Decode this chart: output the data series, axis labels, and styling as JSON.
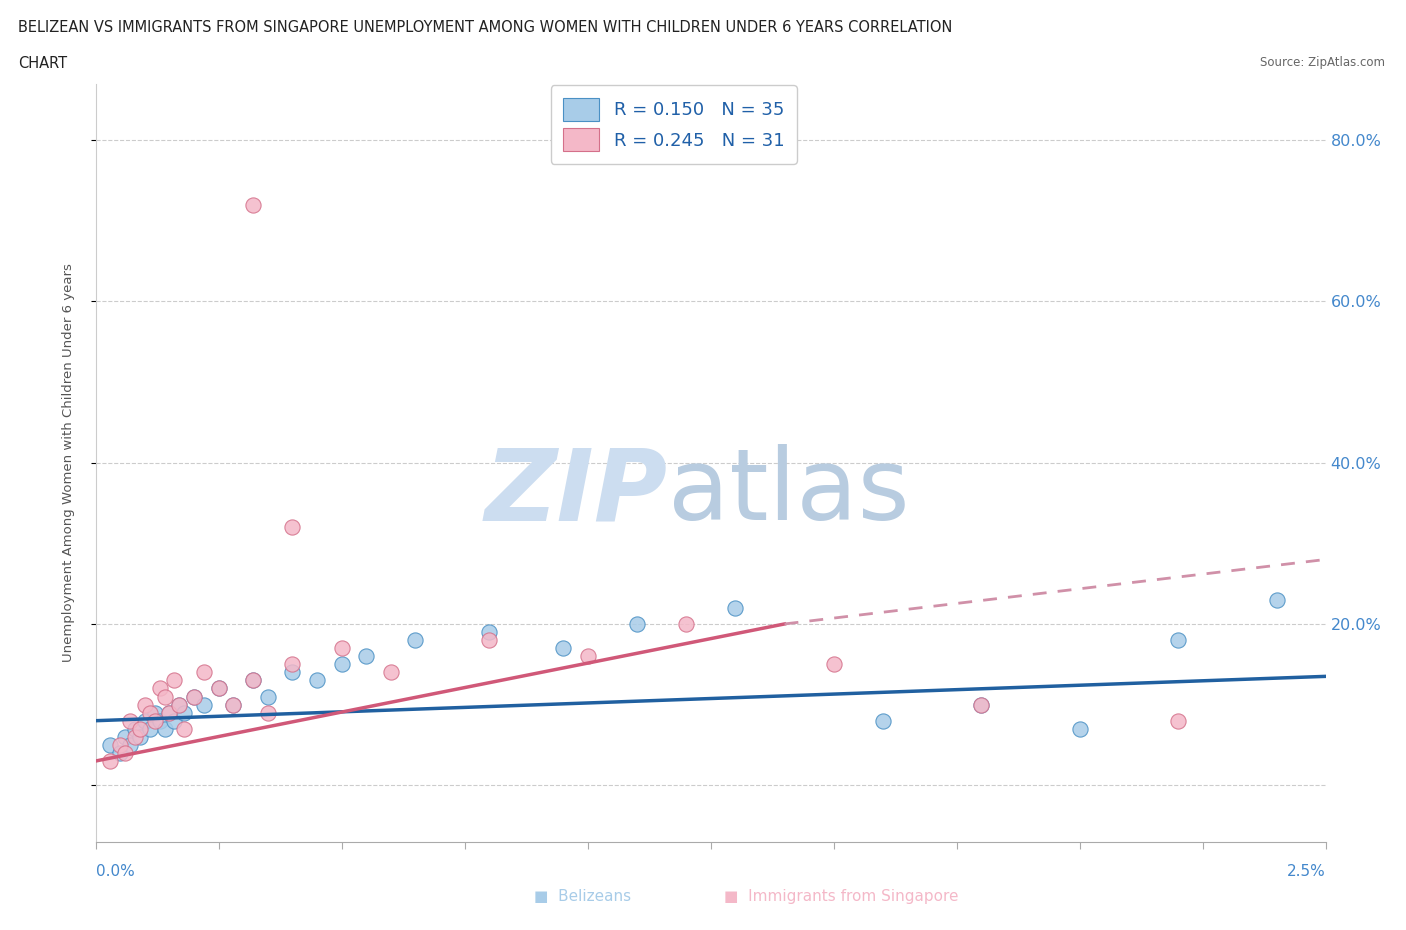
{
  "title_line1": "BELIZEAN VS IMMIGRANTS FROM SINGAPORE UNEMPLOYMENT AMONG WOMEN WITH CHILDREN UNDER 6 YEARS CORRELATION",
  "title_line2": "CHART",
  "source": "Source: ZipAtlas.com",
  "ylabel": "Unemployment Among Women with Children Under 6 years",
  "xlim": [
    0.0,
    2.5
  ],
  "ylim": [
    -7.0,
    87.0
  ],
  "yticks": [
    0,
    20,
    40,
    60,
    80
  ],
  "blue_color": "#a8cce8",
  "blue_edge": "#4a90c4",
  "pink_color": "#f4b8c8",
  "pink_edge": "#d4708a",
  "blue_trend_color": "#2060a0",
  "pink_solid_color": "#d05878",
  "pink_dash_color": "#d090a8",
  "blue_R": "0.150",
  "blue_N": "35",
  "pink_R": "0.245",
  "pink_N": "31",
  "legend_label1": "Belizeans",
  "legend_label2": "Immigrants from Singapore",
  "blue_x": [
    0.03,
    0.05,
    0.06,
    0.07,
    0.08,
    0.09,
    0.1,
    0.11,
    0.12,
    0.13,
    0.14,
    0.15,
    0.16,
    0.17,
    0.18,
    0.2,
    0.22,
    0.25,
    0.28,
    0.32,
    0.35,
    0.4,
    0.45,
    0.5,
    0.55,
    0.65,
    0.8,
    0.95,
    1.1,
    1.3,
    1.6,
    1.8,
    2.0,
    2.2,
    2.4
  ],
  "blue_y": [
    5,
    4,
    6,
    5,
    7,
    6,
    8,
    7,
    9,
    8,
    7,
    9,
    8,
    10,
    9,
    11,
    10,
    12,
    10,
    13,
    11,
    14,
    13,
    15,
    16,
    18,
    19,
    17,
    20,
    22,
    8,
    10,
    7,
    18,
    23
  ],
  "pink_x": [
    0.03,
    0.05,
    0.06,
    0.07,
    0.08,
    0.09,
    0.1,
    0.11,
    0.12,
    0.13,
    0.14,
    0.15,
    0.16,
    0.17,
    0.18,
    0.2,
    0.22,
    0.25,
    0.28,
    0.32,
    0.35,
    0.4,
    0.5,
    0.6,
    0.8,
    1.0,
    1.2,
    1.5,
    1.8,
    2.2,
    0.4
  ],
  "pink_y": [
    3,
    5,
    4,
    8,
    6,
    7,
    10,
    9,
    8,
    12,
    11,
    9,
    13,
    10,
    7,
    11,
    14,
    12,
    10,
    13,
    9,
    15,
    17,
    14,
    18,
    16,
    20,
    15,
    10,
    8,
    32
  ],
  "pink_outlier_x": 0.32,
  "pink_outlier_y": 72,
  "blue_trend_x0": 0.0,
  "blue_trend_y0": 8.0,
  "blue_trend_x1": 2.5,
  "blue_trend_y1": 13.5,
  "pink_solid_x0": 0.0,
  "pink_solid_y0": 3.0,
  "pink_solid_x1": 1.4,
  "pink_solid_y1": 20.0,
  "pink_dash_x0": 1.4,
  "pink_dash_y0": 20.0,
  "pink_dash_x1": 2.5,
  "pink_dash_y1": 28.0
}
